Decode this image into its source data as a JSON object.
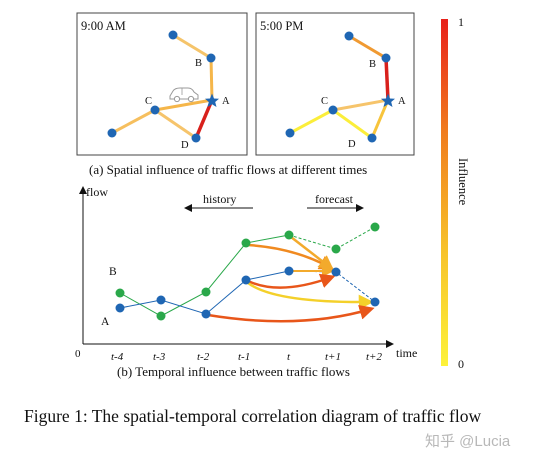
{
  "panel_a": {
    "left_time": "9:00 AM",
    "right_time": "5:00 PM",
    "caption": "(a) Spatial influence of traffic flows  at different times",
    "node_labels": {
      "A": "A",
      "B": "B",
      "C": "C",
      "D": "D"
    }
  },
  "legend": {
    "title": "Influence",
    "max_label": "1",
    "min_label": "0",
    "gradient_colors": [
      "#e8201a",
      "#f07d1e",
      "#f7c12a",
      "#fdf23a"
    ]
  },
  "panel_b": {
    "y_axis_label": "flow",
    "x_axis_label": "time",
    "origin_label": "0",
    "history_label": "history",
    "forecast_label": "forecast",
    "series_labels": {
      "B": "B",
      "A": "A"
    },
    "ticks": [
      "t-4",
      "t-3",
      "t-2",
      "t-1",
      "t",
      "t+1",
      "t+2"
    ],
    "caption": "(b) Temporal influence between traffic flows",
    "series_colors": {
      "B": "#2aa84a",
      "A": "#1f66b3"
    }
  },
  "figure_caption": "Figure 1: The spatial-temporal correlation diagram of traffic flow",
  "watermark": "知乎 @Lucia"
}
